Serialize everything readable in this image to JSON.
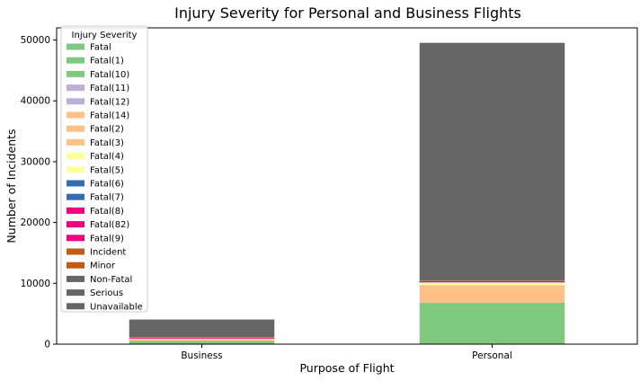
{
  "chart_data": {
    "type": "bar",
    "stacked": true,
    "title": "Injury Severity for Personal and Business Flights",
    "xlabel": "Purpose of Flight",
    "ylabel": "Number of Incidents",
    "categories": [
      "Business",
      "Personal"
    ],
    "ylim": [
      0,
      52000
    ],
    "yticks": [
      0,
      10000,
      20000,
      30000,
      40000,
      50000
    ],
    "grid": false,
    "legend": {
      "title": "Injury Severity",
      "placement": "top-left"
    },
    "series": [
      {
        "name": "Fatal",
        "color": "#7fc97f",
        "values": [
          520,
          6800
        ]
      },
      {
        "name": "Fatal(1)",
        "color": "#7fc97f",
        "values": [
          0,
          0
        ]
      },
      {
        "name": "Fatal(10)",
        "color": "#7fc97f",
        "values": [
          0,
          0
        ]
      },
      {
        "name": "Fatal(11)",
        "color": "#beaed4",
        "values": [
          0,
          0
        ]
      },
      {
        "name": "Fatal(12)",
        "color": "#beaed4",
        "values": [
          0,
          0
        ]
      },
      {
        "name": "Fatal(14)",
        "color": "#fdc086",
        "values": [
          0,
          0
        ]
      },
      {
        "name": "Fatal(2)",
        "color": "#fdc086",
        "values": [
          230,
          2300
        ]
      },
      {
        "name": "Fatal(3)",
        "color": "#fdc086",
        "values": [
          90,
          600
        ]
      },
      {
        "name": "Fatal(4)",
        "color": "#ffff99",
        "values": [
          40,
          300
        ]
      },
      {
        "name": "Fatal(5)",
        "color": "#ffff99",
        "values": [
          20,
          120
        ]
      },
      {
        "name": "Fatal(6)",
        "color": "#386cb0",
        "values": [
          10,
          40
        ]
      },
      {
        "name": "Fatal(7)",
        "color": "#386cb0",
        "values": [
          5,
          20
        ]
      },
      {
        "name": "Fatal(8)",
        "color": "#f0027f",
        "values": [
          150,
          180
        ]
      },
      {
        "name": "Fatal(82)",
        "color": "#f0027f",
        "values": [
          0,
          0
        ]
      },
      {
        "name": "Fatal(9)",
        "color": "#f0027f",
        "values": [
          0,
          0
        ]
      },
      {
        "name": "Incident",
        "color": "#bf5b17",
        "values": [
          50,
          20
        ]
      },
      {
        "name": "Minor",
        "color": "#bf5b17",
        "values": [
          40,
          60
        ]
      },
      {
        "name": "Non-Fatal",
        "color": "#666666",
        "values": [
          2900,
          39100
        ]
      },
      {
        "name": "Serious",
        "color": "#666666",
        "values": [
          0,
          0
        ]
      },
      {
        "name": "Unavailable",
        "color": "#666666",
        "values": [
          0,
          0
        ]
      }
    ]
  }
}
